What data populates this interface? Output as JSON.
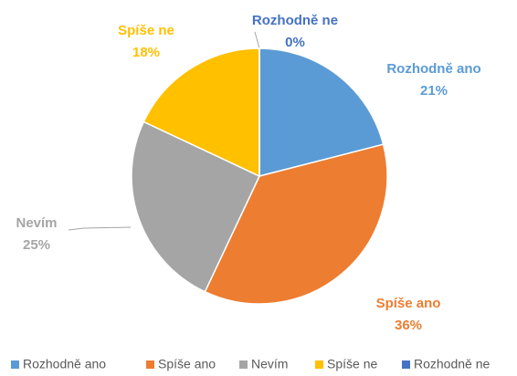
{
  "chart_data": {
    "type": "pie",
    "categories": [
      "Rozhodně ano",
      "Spíše ano",
      "Nevím",
      "Spíše ne",
      "Rozhodně ne"
    ],
    "values": [
      21,
      36,
      25,
      18,
      0
    ],
    "value_labels": [
      "21%",
      "36%",
      "25%",
      "18%",
      "0%"
    ],
    "colors": [
      "#5b9bd5",
      "#ed7d31",
      "#a5a5a5",
      "#ffc000",
      "#4472c4"
    ],
    "legend": "bottom"
  }
}
